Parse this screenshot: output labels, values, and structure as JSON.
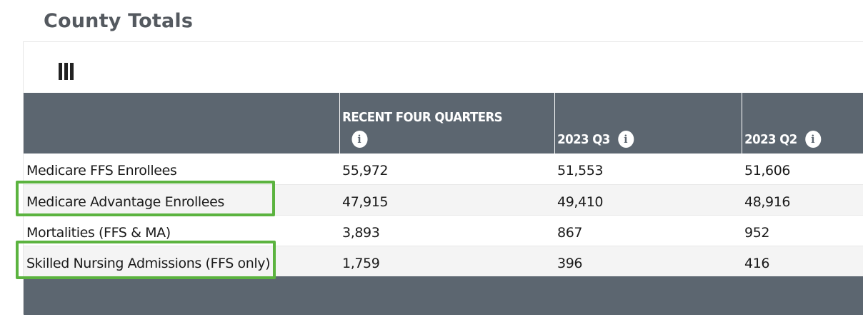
{
  "page": {
    "title": "County Totals"
  },
  "toolbar": {
    "columns_icon": "columns-icon"
  },
  "table": {
    "headers": [
      {
        "label": ""
      },
      {
        "label": "RECENT FOUR QUARTERS",
        "info": "info-icon"
      },
      {
        "label": "2023 Q3",
        "info": "info-icon"
      },
      {
        "label": "2023 Q2",
        "info": "info-icon"
      }
    ],
    "rows": [
      {
        "label": "Medicare FFS Enrollees",
        "values": [
          "55,972",
          "51,553",
          "51,606"
        ]
      },
      {
        "label": "Medicare Advantage Enrollees",
        "values": [
          "47,915",
          "49,410",
          "48,916"
        ]
      },
      {
        "label": "Mortalities (FFS & MA)",
        "values": [
          "3,893",
          "867",
          "952"
        ]
      },
      {
        "label": "Skilled Nursing Admissions (FFS only)",
        "values": [
          "1,759",
          "396",
          "416"
        ]
      }
    ]
  },
  "highlights": {
    "color": "#5bb33f",
    "rows": [
      "Medicare Advantage Enrollees",
      "Skilled Nursing Admissions (FFS only)"
    ]
  },
  "colors": {
    "header_bg": "#5c6670",
    "title": "#54595f"
  }
}
